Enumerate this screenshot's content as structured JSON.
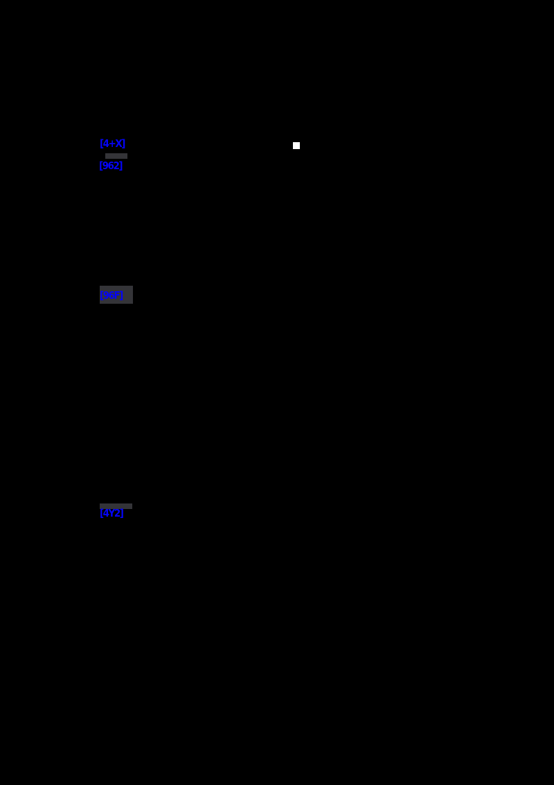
{
  "page": {
    "background_color": "#000000",
    "link_color": "#0404F8",
    "highlight_color": "#343438",
    "marker_color": "#FFFFFF",
    "links": [
      {
        "label": "[4+X]"
      },
      {
        "label": "[962]"
      },
      {
        "label": "[96F]"
      },
      {
        "label": "[4Y2]"
      }
    ]
  }
}
